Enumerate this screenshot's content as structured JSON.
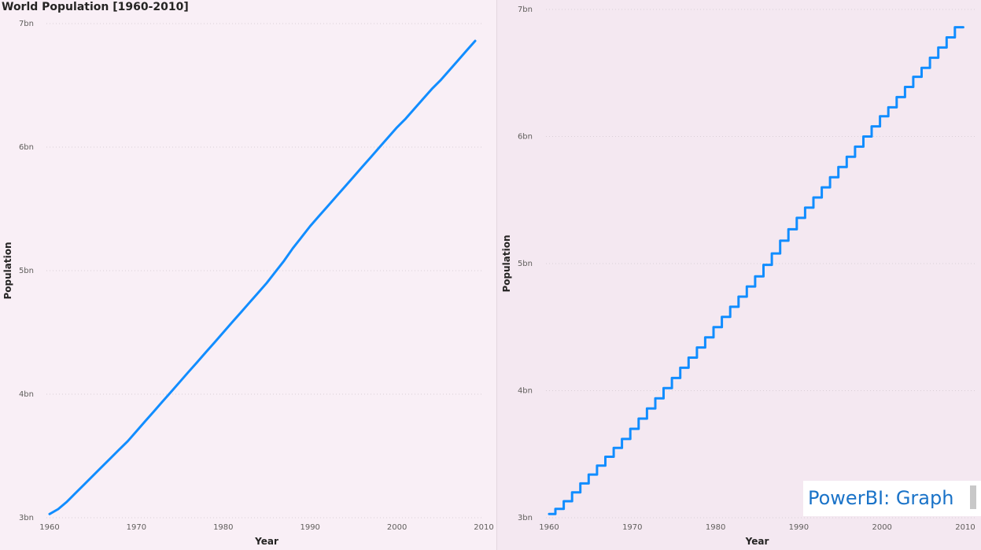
{
  "chart_data": [
    {
      "type": "line",
      "title": "World Population [1960-2010]",
      "xlabel": "Year",
      "ylabel": "Population",
      "x_ticks": [
        "1960",
        "1970",
        "1980",
        "1990",
        "2000",
        "2010"
      ],
      "y_ticks": [
        "3bn",
        "4bn",
        "5bn",
        "6bn",
        "7bn"
      ],
      "xlim": [
        1960,
        2010
      ],
      "ylim": [
        3000000000,
        7000000000
      ],
      "grid": "horizontal dotted",
      "color": "#118DFF",
      "x": [
        1960,
        1961,
        1962,
        1963,
        1964,
        1965,
        1966,
        1967,
        1968,
        1969,
        1970,
        1971,
        1972,
        1973,
        1974,
        1975,
        1976,
        1977,
        1978,
        1979,
        1980,
        1981,
        1982,
        1983,
        1984,
        1985,
        1986,
        1987,
        1988,
        1989,
        1990,
        1991,
        1992,
        1993,
        1994,
        1995,
        1996,
        1997,
        1998,
        1999,
        2000,
        2001,
        2002,
        2003,
        2004,
        2005,
        2006,
        2007,
        2008,
        2009
      ],
      "y": [
        3030000000,
        3070000000,
        3130000000,
        3200000000,
        3270000000,
        3340000000,
        3410000000,
        3480000000,
        3550000000,
        3620000000,
        3700000000,
        3780000000,
        3860000000,
        3940000000,
        4020000000,
        4100000000,
        4180000000,
        4260000000,
        4340000000,
        4420000000,
        4500000000,
        4580000000,
        4660000000,
        4740000000,
        4820000000,
        4900000000,
        4990000000,
        5080000000,
        5180000000,
        5270000000,
        5360000000,
        5440000000,
        5520000000,
        5600000000,
        5680000000,
        5760000000,
        5840000000,
        5920000000,
        6000000000,
        6080000000,
        6160000000,
        6230000000,
        6310000000,
        6390000000,
        6470000000,
        6540000000,
        6620000000,
        6700000000,
        6780000000,
        6860000000
      ]
    },
    {
      "type": "line",
      "style": "step",
      "xlabel": "Year",
      "ylabel": "Population",
      "x_ticks": [
        "1960",
        "1970",
        "1980",
        "1990",
        "2000",
        "2010"
      ],
      "y_ticks": [
        "3bn",
        "4bn",
        "5bn",
        "6bn",
        "7bn"
      ],
      "xlim": [
        1960,
        2010
      ],
      "ylim": [
        3000000000,
        7000000000
      ],
      "grid": "horizontal dotted",
      "color": "#118DFF",
      "x": [
        1960,
        1961,
        1962,
        1963,
        1964,
        1965,
        1966,
        1967,
        1968,
        1969,
        1970,
        1971,
        1972,
        1973,
        1974,
        1975,
        1976,
        1977,
        1978,
        1979,
        1980,
        1981,
        1982,
        1983,
        1984,
        1985,
        1986,
        1987,
        1988,
        1989,
        1990,
        1991,
        1992,
        1993,
        1994,
        1995,
        1996,
        1997,
        1998,
        1999,
        2000,
        2001,
        2002,
        2003,
        2004,
        2005,
        2006,
        2007,
        2008,
        2009
      ],
      "y": [
        3030000000,
        3070000000,
        3130000000,
        3200000000,
        3270000000,
        3340000000,
        3410000000,
        3480000000,
        3550000000,
        3620000000,
        3700000000,
        3780000000,
        3860000000,
        3940000000,
        4020000000,
        4100000000,
        4180000000,
        4260000000,
        4340000000,
        4420000000,
        4500000000,
        4580000000,
        4660000000,
        4740000000,
        4820000000,
        4900000000,
        4990000000,
        5080000000,
        5180000000,
        5270000000,
        5360000000,
        5440000000,
        5520000000,
        5600000000,
        5680000000,
        5760000000,
        5840000000,
        5920000000,
        6000000000,
        6080000000,
        6160000000,
        6230000000,
        6310000000,
        6390000000,
        6470000000,
        6540000000,
        6620000000,
        6700000000,
        6780000000,
        6860000000
      ]
    }
  ],
  "watermark": {
    "text": "PowerBI: Graph"
  }
}
